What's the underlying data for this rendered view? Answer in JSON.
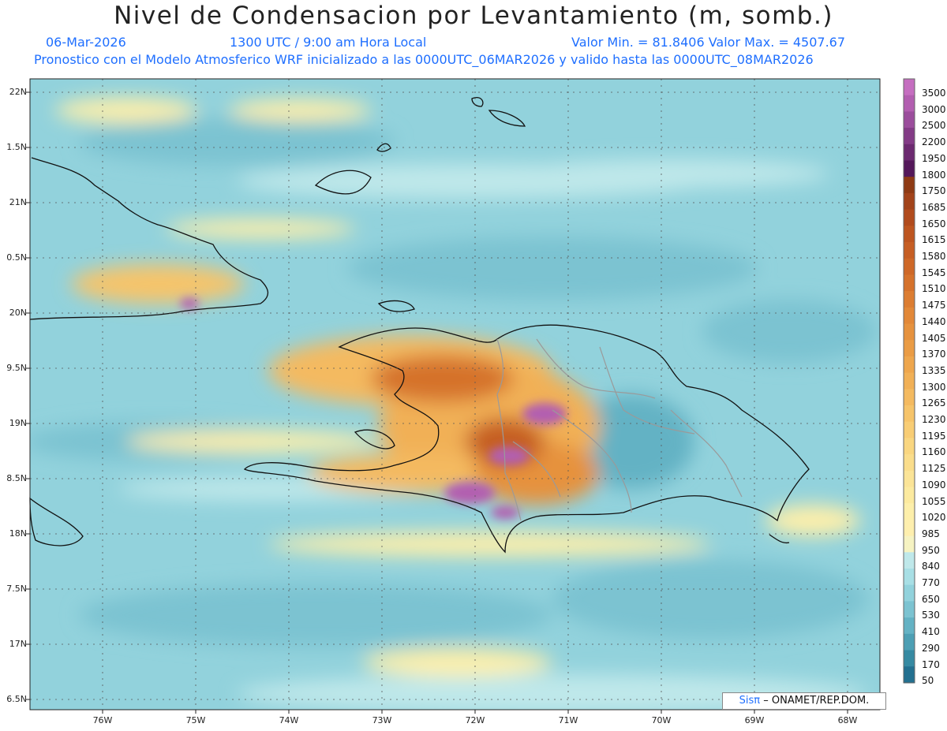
{
  "title": "Nivel de Condensacion por Levantamiento (m, somb.)",
  "date": "06-Mar-2026",
  "time": "1300 UTC / 9:00 am Hora Local",
  "stats": "Valor Min. = 81.8406   Valor Max. = 4507.67",
  "forecast": "Pronostico con el Modelo Atmosferico WRF inicializado a las 0000UTC_06MAR2026 y valido hasta las  0000UTC_08MAR2026",
  "lat_labels": [
    "22N",
    "1.5N",
    "21N",
    "0.5N",
    "20N",
    "9.5N",
    "19N",
    "8.5N",
    "18N",
    "7.5N",
    "17N",
    "6.5N"
  ],
  "lon_labels": [
    "76W",
    "75W",
    "74W",
    "73W",
    "72W",
    "71W",
    "70W",
    "69W",
    "68W"
  ],
  "colorbar": {
    "labels": [
      "3500",
      "3000",
      "2500",
      "2200",
      "1950",
      "1800",
      "1750",
      "1685",
      "1650",
      "1615",
      "1580",
      "1545",
      "1510",
      "1475",
      "1440",
      "1405",
      "1370",
      "1335",
      "1300",
      "1265",
      "1230",
      "1195",
      "1160",
      "1125",
      "1090",
      "1055",
      "1020",
      "985",
      "950",
      "840",
      "770",
      "650",
      "530",
      "410",
      "290",
      "170",
      "50"
    ],
    "colors": [
      "#c56ec0",
      "#b25eb0",
      "#9b4d9c",
      "#833b86",
      "#6c2a70",
      "#54185a",
      "#8e3a14",
      "#a2431a",
      "#b14b1d",
      "#bd5520",
      "#c65e24",
      "#ce6828",
      "#d5722c",
      "#dc7d32",
      "#e28838",
      "#e6923e",
      "#ea9c45",
      "#eea64d",
      "#f1b056",
      "#f4ba60",
      "#f6c46a",
      "#f8cd75",
      "#f9d680",
      "#fadd8b",
      "#fbe497",
      "#fcea9f",
      "#fdefaa",
      "#feefae",
      "#f6f3c2",
      "#bfe8ea",
      "#a8dfe5",
      "#92d2dc",
      "#7cc3d1",
      "#64b2c4",
      "#4d9fb4",
      "#368aa2",
      "#237090"
    ]
  },
  "credit_brand": "Sisπ",
  "credit_org": "– ONAMET/REP.DOM."
}
